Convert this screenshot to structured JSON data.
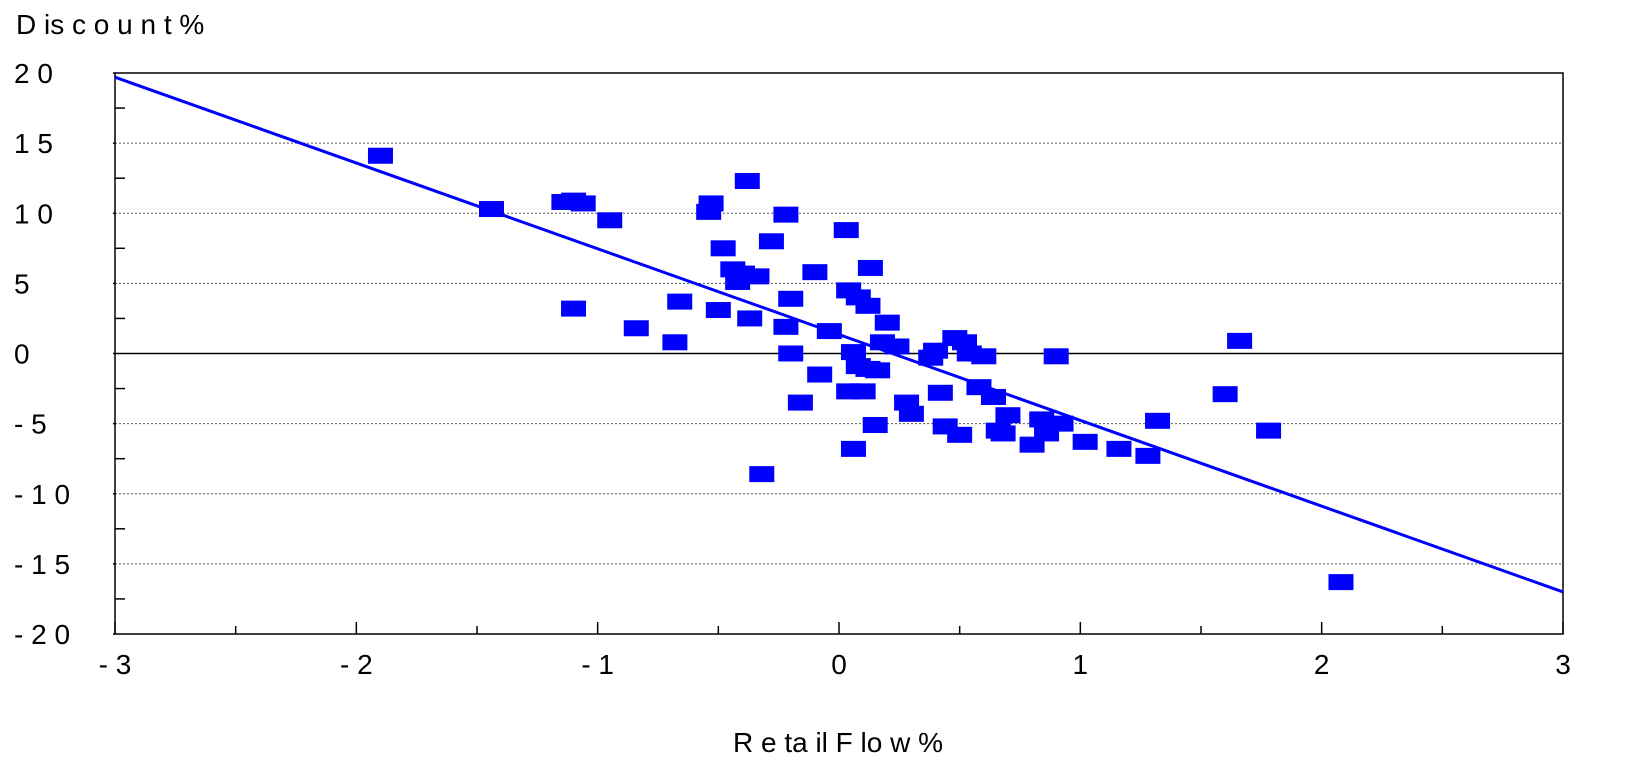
{
  "chart_data": {
    "type": "scatter",
    "title": "",
    "xlabel": "R e ta il F lo w  %",
    "ylabel": "D is c o u n t  %",
    "xlim": [
      -3,
      3
    ],
    "ylim": [
      -20,
      20
    ],
    "xticks": [
      -3,
      -2,
      -1,
      0,
      1,
      2,
      3
    ],
    "xtick_labels": [
      "- 3",
      "- 2",
      "- 1",
      "0",
      "1",
      "2",
      "3"
    ],
    "yticks": [
      20,
      15,
      10,
      5,
      0,
      -5,
      -10,
      -15,
      -20
    ],
    "ytick_labels": [
      "2 0",
      "1 5",
      "1 0",
      "5",
      "0",
      "- 5",
      "- 1 0",
      "- 1 5",
      "- 2 0"
    ],
    "grid": "horizontal dotted",
    "marker_color": "#0000ff",
    "line_color": "#0000ff",
    "fit_line": {
      "x": [
        -3,
        3
      ],
      "y": [
        19.7,
        -17.0
      ]
    },
    "points": [
      {
        "x": -1.9,
        "y": 14.1
      },
      {
        "x": -1.44,
        "y": 10.3
      },
      {
        "x": -1.14,
        "y": 10.8
      },
      {
        "x": -1.1,
        "y": 10.9
      },
      {
        "x": -1.06,
        "y": 10.7
      },
      {
        "x": -0.95,
        "y": 9.5
      },
      {
        "x": -1.1,
        "y": 3.2
      },
      {
        "x": -0.84,
        "y": 1.8
      },
      {
        "x": -0.68,
        "y": 0.8
      },
      {
        "x": -0.66,
        "y": 3.7
      },
      {
        "x": -0.54,
        "y": 10.1
      },
      {
        "x": -0.53,
        "y": 10.7
      },
      {
        "x": -0.5,
        "y": 3.1
      },
      {
        "x": -0.48,
        "y": 7.5
      },
      {
        "x": -0.44,
        "y": 6.0
      },
      {
        "x": -0.42,
        "y": 5.1
      },
      {
        "x": -0.4,
        "y": 5.7
      },
      {
        "x": -0.38,
        "y": 12.3
      },
      {
        "x": -0.37,
        "y": 2.5
      },
      {
        "x": -0.34,
        "y": 5.5
      },
      {
        "x": -0.32,
        "y": -8.6
      },
      {
        "x": -0.28,
        "y": 8.0
      },
      {
        "x": -0.22,
        "y": 9.9
      },
      {
        "x": -0.22,
        "y": 1.9
      },
      {
        "x": -0.2,
        "y": 0.0
      },
      {
        "x": -0.2,
        "y": 3.9
      },
      {
        "x": -0.16,
        "y": -3.5
      },
      {
        "x": -0.1,
        "y": 5.8
      },
      {
        "x": -0.08,
        "y": -1.5
      },
      {
        "x": -0.04,
        "y": 1.6
      },
      {
        "x": 0.03,
        "y": 8.8
      },
      {
        "x": 0.04,
        "y": 4.5
      },
      {
        "x": 0.04,
        "y": -2.7
      },
      {
        "x": 0.06,
        "y": 0.1
      },
      {
        "x": 0.06,
        "y": -6.8
      },
      {
        "x": 0.08,
        "y": 4.0
      },
      {
        "x": 0.08,
        "y": -0.9
      },
      {
        "x": 0.1,
        "y": -2.7
      },
      {
        "x": 0.12,
        "y": 3.4
      },
      {
        "x": 0.12,
        "y": -1.1
      },
      {
        "x": 0.13,
        "y": 6.1
      },
      {
        "x": 0.15,
        "y": -5.1
      },
      {
        "x": 0.16,
        "y": -1.2
      },
      {
        "x": 0.18,
        "y": 0.8
      },
      {
        "x": 0.2,
        "y": 2.2
      },
      {
        "x": 0.24,
        "y": 0.5
      },
      {
        "x": 0.28,
        "y": -3.5
      },
      {
        "x": 0.3,
        "y": -4.3
      },
      {
        "x": 0.38,
        "y": -0.3
      },
      {
        "x": 0.4,
        "y": 0.2
      },
      {
        "x": 0.42,
        "y": -2.8
      },
      {
        "x": 0.44,
        "y": -5.2
      },
      {
        "x": 0.48,
        "y": 1.1
      },
      {
        "x": 0.5,
        "y": -5.8
      },
      {
        "x": 0.52,
        "y": 0.8
      },
      {
        "x": 0.54,
        "y": 0.0
      },
      {
        "x": 0.58,
        "y": -2.4
      },
      {
        "x": 0.6,
        "y": -0.2
      },
      {
        "x": 0.64,
        "y": -3.1
      },
      {
        "x": 0.66,
        "y": -5.5
      },
      {
        "x": 0.68,
        "y": -5.7
      },
      {
        "x": 0.7,
        "y": -4.4
      },
      {
        "x": 0.8,
        "y": -6.5
      },
      {
        "x": 0.84,
        "y": -4.7
      },
      {
        "x": 0.86,
        "y": -5.7
      },
      {
        "x": 0.9,
        "y": -0.2
      },
      {
        "x": 0.92,
        "y": -5.0
      },
      {
        "x": 1.02,
        "y": -6.3
      },
      {
        "x": 1.16,
        "y": -6.8
      },
      {
        "x": 1.28,
        "y": -7.3
      },
      {
        "x": 1.32,
        "y": -4.8
      },
      {
        "x": 1.6,
        "y": -2.9
      },
      {
        "x": 1.66,
        "y": 0.9
      },
      {
        "x": 1.78,
        "y": -5.5
      },
      {
        "x": 2.08,
        "y": -16.3
      }
    ]
  }
}
